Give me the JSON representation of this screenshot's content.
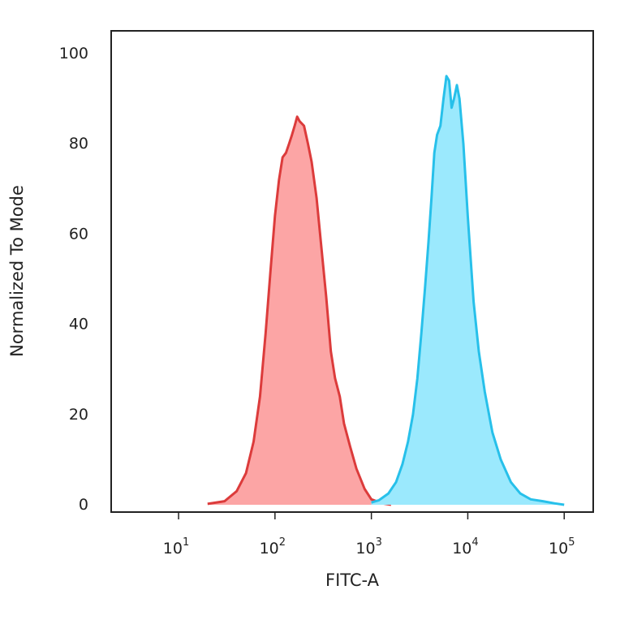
{
  "chart_data": {
    "type": "area",
    "xlabel": "FITC-A",
    "ylabel": "Normalized To Mode",
    "x_scale": "log",
    "xlim": [
      2.0,
      200000
    ],
    "ylim": [
      0,
      100
    ],
    "x_ticks": [
      {
        "value": 10,
        "base": "10",
        "exp": "1"
      },
      {
        "value": 100,
        "base": "10",
        "exp": "2"
      },
      {
        "value": 1000,
        "base": "10",
        "exp": "3"
      },
      {
        "value": 10000,
        "base": "10",
        "exp": "4"
      },
      {
        "value": 100000,
        "base": "10",
        "exp": "5"
      }
    ],
    "y_ticks": [
      0,
      20,
      40,
      60,
      80,
      100
    ],
    "grid": false,
    "series": [
      {
        "fill": "#fca5a5",
        "stroke": "#dc3b3b",
        "points": [
          [
            20,
            0.2
          ],
          [
            30,
            0.8
          ],
          [
            40,
            3
          ],
          [
            50,
            7
          ],
          [
            60,
            14
          ],
          [
            70,
            24
          ],
          [
            80,
            38
          ],
          [
            90,
            52
          ],
          [
            100,
            64
          ],
          [
            110,
            72
          ],
          [
            120,
            77
          ],
          [
            130,
            78
          ],
          [
            140,
            80
          ],
          [
            150,
            82
          ],
          [
            160,
            84
          ],
          [
            170,
            86
          ],
          [
            180,
            85
          ],
          [
            200,
            84
          ],
          [
            220,
            80
          ],
          [
            240,
            76
          ],
          [
            270,
            68
          ],
          [
            300,
            58
          ],
          [
            340,
            46
          ],
          [
            380,
            34
          ],
          [
            420,
            28
          ],
          [
            470,
            24
          ],
          [
            520,
            18
          ],
          [
            600,
            13
          ],
          [
            700,
            8
          ],
          [
            850,
            3.5
          ],
          [
            1000,
            1.2
          ],
          [
            1300,
            0.3
          ],
          [
            1600,
            0
          ]
        ]
      },
      {
        "fill": "#9be9fd",
        "stroke": "#27c0ea",
        "points": [
          [
            1000,
            0.5
          ],
          [
            1200,
            1
          ],
          [
            1500,
            2.5
          ],
          [
            1800,
            5
          ],
          [
            2100,
            9
          ],
          [
            2400,
            14
          ],
          [
            2700,
            20
          ],
          [
            3000,
            28
          ],
          [
            3300,
            38
          ],
          [
            3600,
            48
          ],
          [
            3900,
            58
          ],
          [
            4200,
            68
          ],
          [
            4500,
            78
          ],
          [
            4800,
            82
          ],
          [
            5200,
            84
          ],
          [
            5600,
            90
          ],
          [
            6000,
            95
          ],
          [
            6400,
            94
          ],
          [
            6800,
            88
          ],
          [
            7200,
            90
          ],
          [
            7700,
            93
          ],
          [
            8200,
            90
          ],
          [
            9000,
            80
          ],
          [
            10000,
            64
          ],
          [
            11500,
            45
          ],
          [
            13000,
            34
          ],
          [
            15000,
            25
          ],
          [
            18000,
            16
          ],
          [
            22000,
            10
          ],
          [
            28000,
            5
          ],
          [
            35000,
            2.5
          ],
          [
            45000,
            1.2
          ],
          [
            60000,
            0.8
          ],
          [
            80000,
            0.3
          ],
          [
            100000,
            0
          ]
        ]
      }
    ]
  }
}
